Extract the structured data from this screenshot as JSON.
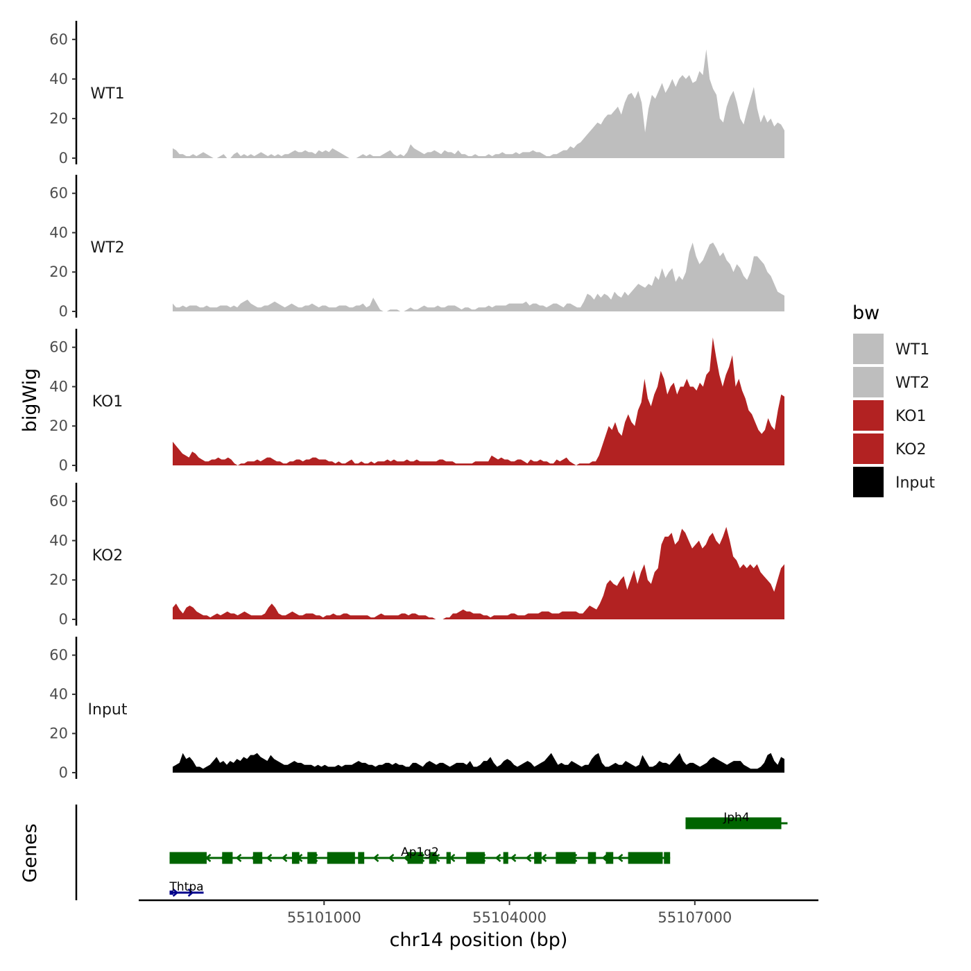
{
  "chart_data": {
    "type": "area",
    "xlabel": "chr14 position (bp)",
    "ylabel": "bigWig",
    "genes_label": "Genes",
    "x_ticks": [
      55101000,
      55104000,
      55107000
    ],
    "x_tick_labels": [
      "55101000",
      "55104000",
      "55107000"
    ],
    "xlim": [
      55098000,
      55109000
    ],
    "ylim": [
      0,
      68
    ],
    "y_ticks": [
      0,
      20,
      40,
      60
    ],
    "y_tick_labels": [
      "0",
      "20",
      "40",
      "60"
    ],
    "legend": {
      "title": "bw",
      "position": "right",
      "entries": [
        {
          "label": "WT1",
          "color": "#BEBEBE"
        },
        {
          "label": "WT2",
          "color": "#BEBEBE"
        },
        {
          "label": "KO1",
          "color": "#B22222"
        },
        {
          "label": "KO2",
          "color": "#B22222"
        },
        {
          "label": "Input",
          "color": "#000000"
        }
      ]
    },
    "track_x_range": [
      55098550,
      55108450
    ],
    "tracks": [
      {
        "name": "WT1",
        "color": "#BEBEBE",
        "values": [
          5,
          4,
          2,
          2,
          1,
          1,
          2,
          1,
          2,
          3,
          2,
          1,
          0,
          0,
          1,
          2,
          0,
          0,
          2,
          3,
          1,
          2,
          1,
          2,
          1,
          2,
          3,
          2,
          1,
          2,
          1,
          2,
          1,
          2,
          2,
          3,
          4,
          3,
          3,
          4,
          3,
          3,
          2,
          4,
          3,
          4,
          3,
          5,
          4,
          3,
          2,
          1,
          0,
          0,
          0,
          1,
          2,
          1,
          2,
          1,
          1,
          1,
          2,
          3,
          4,
          2,
          1,
          2,
          1,
          3,
          7,
          5,
          4,
          3,
          2,
          3,
          3,
          4,
          3,
          2,
          4,
          3,
          3,
          2,
          4,
          2,
          2,
          1,
          1,
          2,
          1,
          1,
          1,
          2,
          1,
          2,
          2,
          3,
          2,
          2,
          2,
          3,
          2,
          3,
          3,
          3,
          4,
          3,
          3,
          2,
          1,
          1,
          2,
          2,
          3,
          4,
          4,
          6,
          5,
          7,
          8,
          10,
          12,
          14,
          16,
          18,
          17,
          20,
          22,
          22,
          24,
          26,
          22,
          28,
          32,
          33,
          30,
          34,
          28,
          13,
          25,
          32,
          30,
          34,
          38,
          33,
          36,
          40,
          36,
          40,
          42,
          40,
          42,
          38,
          39,
          44,
          42,
          55,
          40,
          35,
          32,
          20,
          18,
          26,
          31,
          34,
          28,
          20,
          17,
          24,
          30,
          36,
          25,
          18,
          22,
          18,
          20,
          16,
          18,
          17,
          14
        ],
        "shape": [
          55098550,
          55108450
        ]
      },
      {
        "name": "WT2",
        "color": "#BEBEBE",
        "values": [
          4,
          2,
          2,
          3,
          2,
          3,
          3,
          3,
          2,
          2,
          3,
          2,
          2,
          2,
          3,
          3,
          3,
          2,
          3,
          2,
          4,
          5,
          6,
          4,
          3,
          2,
          2,
          3,
          3,
          4,
          5,
          4,
          3,
          2,
          3,
          4,
          3,
          2,
          2,
          3,
          3,
          4,
          3,
          2,
          3,
          3,
          2,
          2,
          2,
          3,
          3,
          3,
          2,
          2,
          3,
          3,
          4,
          2,
          3,
          7,
          4,
          1,
          0,
          0,
          1,
          1,
          1,
          0,
          0,
          1,
          2,
          1,
          1,
          2,
          3,
          2,
          2,
          2,
          3,
          2,
          2,
          3,
          3,
          3,
          2,
          1,
          2,
          2,
          1,
          1,
          2,
          2,
          2,
          3,
          2,
          3,
          3,
          3,
          3,
          4,
          4,
          4,
          4,
          4,
          5,
          3,
          4,
          4,
          3,
          3,
          2,
          3,
          4,
          4,
          3,
          2,
          4,
          4,
          3,
          2,
          2,
          5,
          9,
          8,
          6,
          9,
          7,
          9,
          8,
          6,
          10,
          8,
          7,
          10,
          8,
          10,
          12,
          14,
          13,
          12,
          14,
          13,
          18,
          16,
          22,
          17,
          20,
          22,
          15,
          18,
          16,
          20,
          30,
          35,
          28,
          24,
          26,
          30,
          34,
          35,
          32,
          28,
          30,
          26,
          24,
          20,
          24,
          22,
          18,
          16,
          20,
          28,
          28,
          26,
          24,
          20,
          18,
          14,
          10,
          9,
          8
        ],
        "shape": [
          55098550,
          55108450
        ]
      },
      {
        "name": "KO1",
        "color": "#B22222",
        "values": [
          12,
          10,
          8,
          6,
          5,
          4,
          7,
          6,
          4,
          3,
          2,
          2,
          3,
          3,
          4,
          3,
          3,
          4,
          3,
          1,
          0,
          1,
          1,
          2,
          2,
          2,
          3,
          2,
          3,
          4,
          4,
          3,
          2,
          2,
          1,
          1,
          2,
          2,
          3,
          3,
          2,
          3,
          3,
          4,
          4,
          3,
          3,
          3,
          2,
          2,
          1,
          2,
          1,
          1,
          2,
          3,
          1,
          1,
          2,
          1,
          1,
          2,
          1,
          2,
          2,
          2,
          3,
          2,
          3,
          2,
          2,
          2,
          3,
          2,
          2,
          3,
          2,
          2,
          2,
          2,
          2,
          2,
          3,
          3,
          2,
          2,
          2,
          1,
          1,
          1,
          1,
          1,
          1,
          2,
          2,
          2,
          2,
          2,
          5,
          4,
          3,
          4,
          3,
          3,
          2,
          2,
          3,
          3,
          2,
          1,
          3,
          2,
          2,
          3,
          2,
          2,
          1,
          1,
          3,
          2,
          3,
          4,
          2,
          1,
          0,
          1,
          1,
          1,
          1,
          2,
          2,
          5,
          10,
          15,
          20,
          18,
          22,
          17,
          15,
          22,
          26,
          22,
          20,
          28,
          32,
          44,
          34,
          30,
          36,
          40,
          48,
          44,
          36,
          40,
          42,
          36,
          40,
          40,
          44,
          40,
          40,
          38,
          42,
          40,
          46,
          48,
          65,
          55,
          46,
          40,
          46,
          50,
          56,
          40,
          44,
          38,
          34,
          28,
          26,
          22,
          18,
          16,
          18,
          24,
          20,
          18,
          28,
          36,
          35
        ]
      },
      {
        "name": "KO2",
        "color": "#B22222",
        "values": [
          6,
          8,
          5,
          3,
          6,
          7,
          6,
          4,
          3,
          2,
          2,
          1,
          2,
          3,
          2,
          3,
          4,
          3,
          3,
          2,
          3,
          4,
          3,
          2,
          2,
          2,
          2,
          3,
          6,
          8,
          6,
          3,
          2,
          2,
          3,
          4,
          3,
          2,
          2,
          3,
          3,
          3,
          2,
          2,
          1,
          2,
          2,
          3,
          2,
          2,
          3,
          3,
          2,
          2,
          2,
          2,
          2,
          2,
          1,
          1,
          2,
          3,
          2,
          2,
          2,
          2,
          2,
          3,
          3,
          2,
          3,
          3,
          2,
          2,
          2,
          1,
          1,
          0,
          0,
          0,
          1,
          1,
          3,
          3,
          4,
          5,
          4,
          4,
          3,
          3,
          3,
          2,
          2,
          1,
          2,
          2,
          2,
          2,
          2,
          3,
          3,
          2,
          2,
          2,
          3,
          3,
          3,
          3,
          4,
          4,
          4,
          3,
          3,
          3,
          4,
          4,
          4,
          4,
          4,
          3,
          3,
          5,
          7,
          6,
          5,
          8,
          12,
          18,
          20,
          18,
          17,
          20,
          22,
          15,
          20,
          25,
          18,
          24,
          28,
          20,
          18,
          24,
          26,
          38,
          42,
          42,
          44,
          38,
          40,
          46,
          44,
          40,
          36,
          38,
          40,
          36,
          38,
          42,
          44,
          40,
          38,
          42,
          47,
          40,
          32,
          30,
          26,
          28,
          26,
          28,
          26,
          28,
          24,
          22,
          20,
          18,
          14,
          20,
          26,
          28
        ]
      },
      {
        "name": "Input",
        "color": "#000000",
        "values": [
          3,
          4,
          5,
          10,
          7,
          8,
          6,
          3,
          3,
          2,
          3,
          4,
          6,
          8,
          5,
          6,
          4,
          6,
          5,
          7,
          6,
          8,
          7,
          9,
          9,
          10,
          8,
          7,
          6,
          9,
          7,
          6,
          5,
          4,
          4,
          5,
          6,
          5,
          5,
          4,
          4,
          4,
          3,
          4,
          3,
          4,
          3,
          3,
          3,
          4,
          3,
          4,
          4,
          4,
          5,
          6,
          5,
          5,
          4,
          4,
          3,
          4,
          4,
          5,
          5,
          4,
          5,
          4,
          4,
          3,
          3,
          5,
          5,
          4,
          3,
          5,
          6,
          5,
          4,
          5,
          5,
          4,
          3,
          4,
          5,
          5,
          5,
          4,
          6,
          3,
          3,
          4,
          6,
          6,
          8,
          5,
          3,
          4,
          6,
          7,
          6,
          4,
          3,
          4,
          5,
          6,
          5,
          3,
          4,
          5,
          6,
          8,
          10,
          7,
          4,
          5,
          4,
          4,
          6,
          5,
          4,
          3,
          4,
          4,
          7,
          9,
          10,
          5,
          3,
          3,
          4,
          5,
          4,
          4,
          6,
          5,
          4,
          3,
          4,
          9,
          6,
          3,
          3,
          4,
          6,
          5,
          5,
          4,
          6,
          8,
          10,
          6,
          4,
          5,
          5,
          4,
          3,
          4,
          5,
          7,
          8,
          7,
          6,
          5,
          4,
          5,
          6,
          6,
          6,
          4,
          3,
          2,
          2,
          2,
          3,
          5,
          9,
          10,
          6,
          4,
          8,
          7
        ]
      }
    ],
    "genes": [
      {
        "name": "Jph4",
        "color": "#006400",
        "row": 0,
        "strand": "-",
        "start": 55106850,
        "end": 55108500,
        "exons": [
          [
            55106850,
            55108400
          ]
        ]
      },
      {
        "name": "Ap1g2",
        "color": "#006400",
        "row": 1,
        "strand": "-",
        "start": 55098500,
        "end": 55106600,
        "exons": [
          [
            55098500,
            55099100
          ],
          [
            55099350,
            55099520
          ],
          [
            55099850,
            55100000
          ],
          [
            55100480,
            55100600
          ],
          [
            55100730,
            55100880
          ],
          [
            55101050,
            55101500
          ],
          [
            55101550,
            55101650
          ],
          [
            55102350,
            55102600
          ],
          [
            55102700,
            55102820
          ],
          [
            55102980,
            55103050
          ],
          [
            55103300,
            55103600
          ],
          [
            55103900,
            55103980
          ],
          [
            55104400,
            55104520
          ],
          [
            55104750,
            55105070
          ],
          [
            55105270,
            55105400
          ],
          [
            55105560,
            55105680
          ],
          [
            55105920,
            55106250
          ],
          [
            55106250,
            55106480
          ],
          [
            55106500,
            55106600
          ]
        ]
      },
      {
        "name": "Thtpa",
        "color": "#00008B",
        "row": 2,
        "strand": "+",
        "start": 55098500,
        "end": 55099050,
        "exons": [
          [
            55098500,
            55098560
          ]
        ]
      }
    ]
  }
}
